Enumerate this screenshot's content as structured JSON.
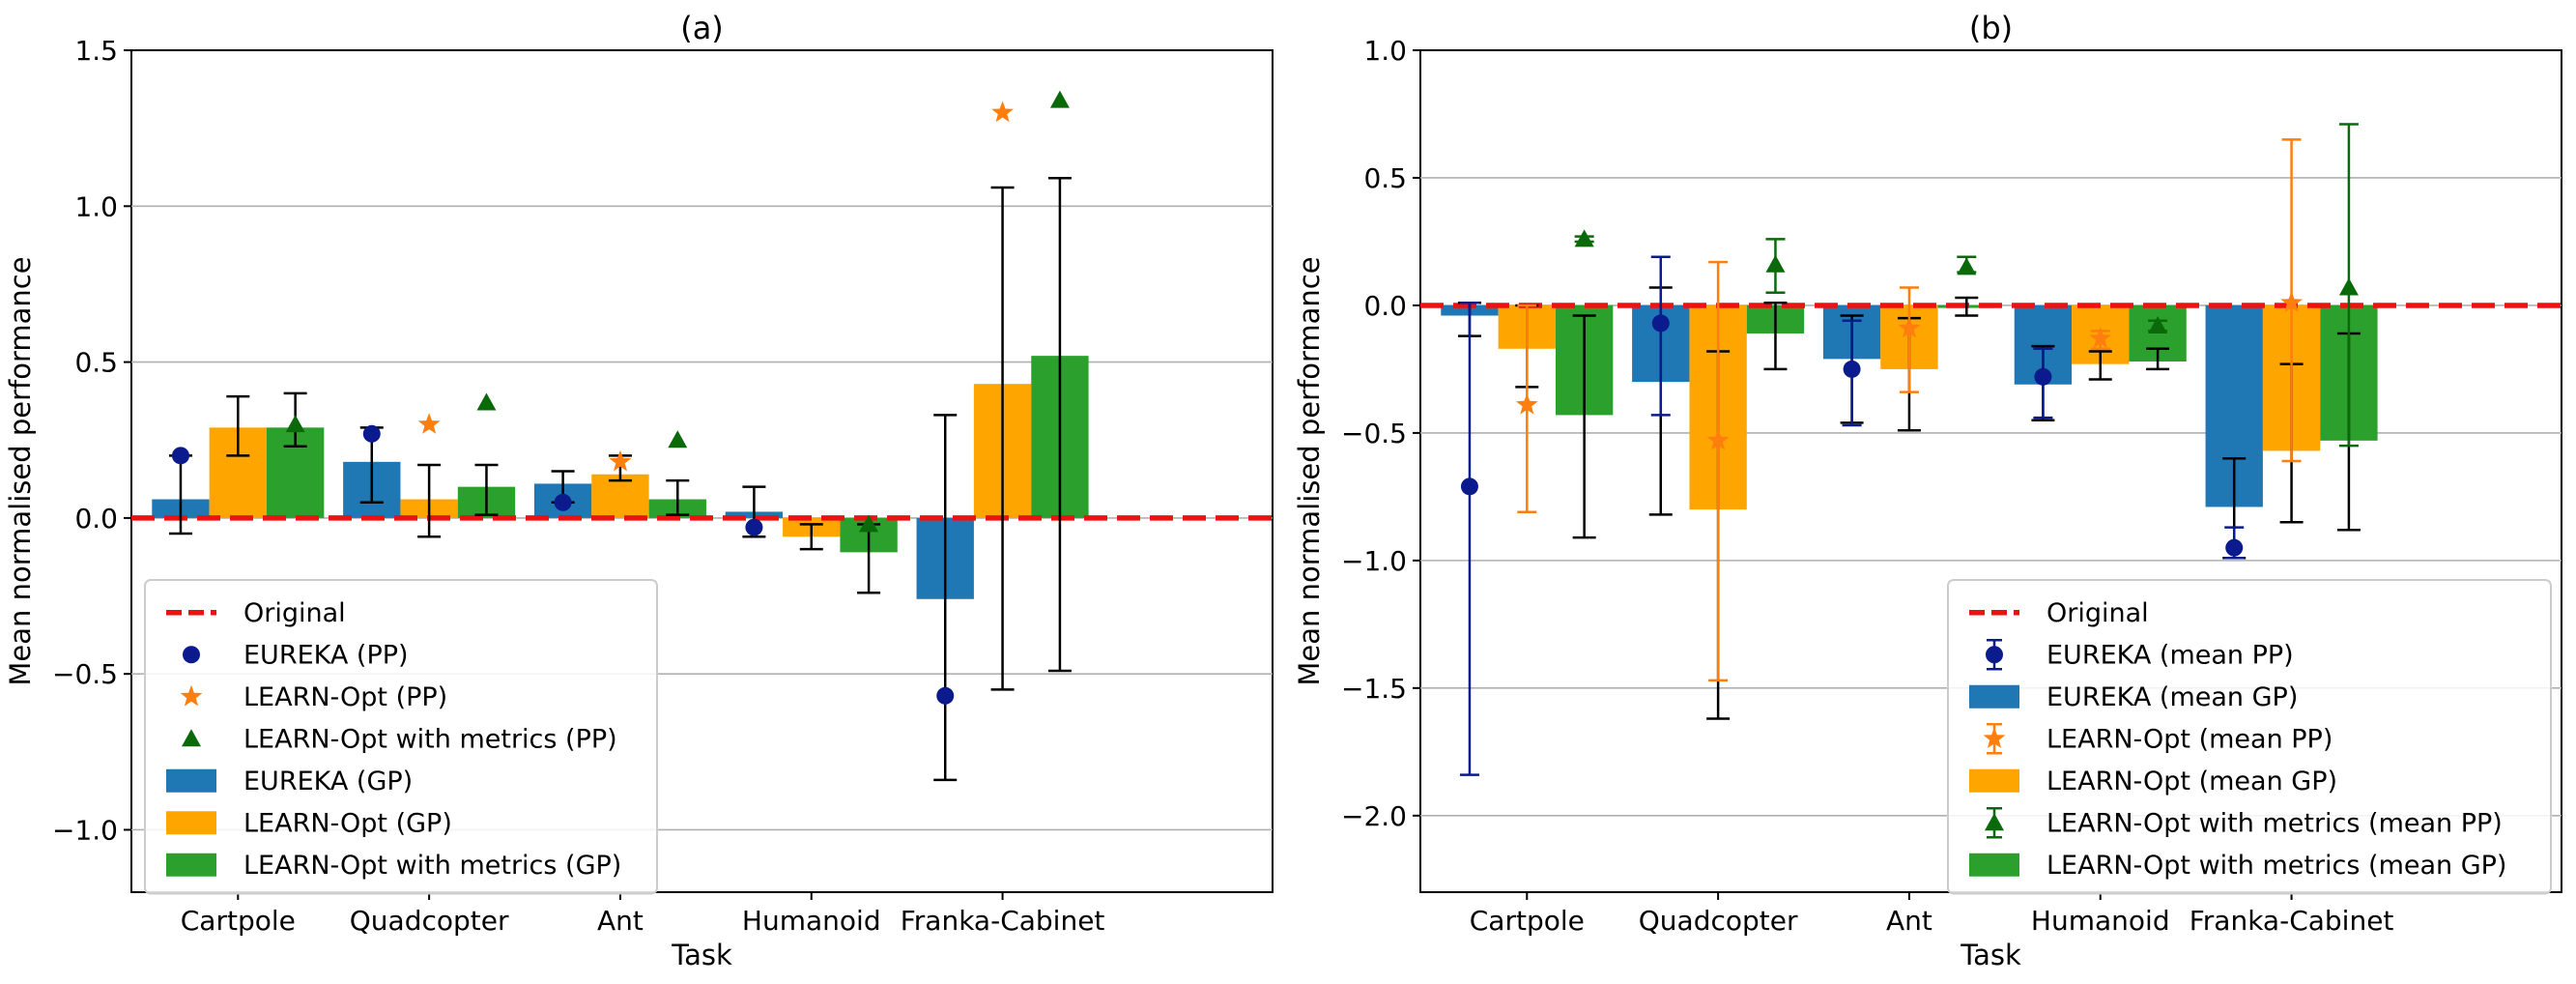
{
  "chart_data": [
    {
      "type": "bar",
      "title": "(a)",
      "xlabel": "Task",
      "ylabel": "Mean normalised performance",
      "ylim": [
        -1.2,
        1.5
      ],
      "yticks": [
        -1.0,
        -0.5,
        0.0,
        0.5,
        1.0,
        1.5
      ],
      "ytick_labels": [
        "−1.0",
        "−0.5",
        "0.0",
        "0.5",
        "1.0",
        "1.5"
      ],
      "grid": "horizontal",
      "legend_position": "lower-left",
      "categories": [
        "Cartpole",
        "Quadcopter",
        "Ant",
        "Humanoid",
        "Franka-Cabinet"
      ],
      "reference_line": {
        "name": "Original",
        "value": 0.0,
        "color": "#ee1111"
      },
      "bar_series": [
        {
          "name": "EUREKA (GP)",
          "color": "#1f77b4",
          "values": [
            0.06,
            0.18,
            0.11,
            0.02,
            -0.26
          ],
          "err_low": [
            -0.05,
            0.05,
            0.05,
            -0.06,
            -0.84
          ],
          "err_high": [
            0.2,
            0.29,
            0.15,
            0.1,
            0.33
          ]
        },
        {
          "name": "LEARN-Opt (GP)",
          "color": "#ffa500",
          "values": [
            0.29,
            0.06,
            0.14,
            -0.06,
            0.43
          ],
          "err_low": [
            0.2,
            -0.06,
            0.12,
            -0.1,
            -0.55
          ],
          "err_high": [
            0.39,
            0.17,
            0.2,
            -0.02,
            1.06
          ]
        },
        {
          "name": "LEARN-Opt with metrics (GP)",
          "color": "#2ca02c",
          "values": [
            0.29,
            0.1,
            0.06,
            -0.11,
            0.52
          ],
          "err_low": [
            0.23,
            0.01,
            0.01,
            -0.24,
            -0.49
          ],
          "err_high": [
            0.4,
            0.17,
            0.12,
            -0.02,
            1.09
          ]
        }
      ],
      "point_series": [
        {
          "name": "EUREKA (PP)",
          "marker": "circle",
          "color": "#0b1a8c",
          "values": [
            0.2,
            0.27,
            0.05,
            -0.03,
            -0.57
          ]
        },
        {
          "name": "LEARN-Opt (PP)",
          "marker": "star",
          "color": "#ff7f0e",
          "values": [
            null,
            0.3,
            0.18,
            null,
            1.3
          ]
        },
        {
          "name": "LEARN-Opt with metrics (PP)",
          "marker": "triangle",
          "color": "#0a6a0a",
          "values": [
            0.3,
            0.37,
            0.25,
            -0.02,
            1.34
          ]
        }
      ],
      "legend": [
        "Original",
        "EUREKA (PP)",
        "LEARN-Opt (PP)",
        "LEARN-Opt with metrics (PP)",
        "EUREKA (GP)",
        "LEARN-Opt (GP)",
        "LEARN-Opt with metrics (GP)"
      ]
    },
    {
      "type": "bar",
      "title": "(b)",
      "xlabel": "Task",
      "ylabel": "Mean normalised performance",
      "ylim": [
        -2.3,
        1.0
      ],
      "yticks": [
        -2.0,
        -1.5,
        -1.0,
        -0.5,
        0.0,
        0.5,
        1.0
      ],
      "ytick_labels": [
        "−2.0",
        "−1.5",
        "−1.0",
        "−0.5",
        "0.0",
        "0.5",
        "1.0"
      ],
      "grid": "horizontal",
      "legend_position": "lower-right",
      "categories": [
        "Cartpole",
        "Quadcopter",
        "Ant",
        "Humanoid",
        "Franka-Cabinet"
      ],
      "reference_line": {
        "name": "Original",
        "value": 0.0,
        "color": "#ee1111"
      },
      "bar_series": [
        {
          "name": "EUREKA (mean GP)",
          "color": "#1f77b4",
          "values": [
            -0.04,
            -0.3,
            -0.21,
            -0.31,
            -0.79
          ],
          "err_low": [
            -0.12,
            -0.82,
            -0.46,
            -0.45,
            -0.99
          ],
          "err_high": [
            0.01,
            0.07,
            -0.04,
            -0.16,
            -0.6
          ]
        },
        {
          "name": "LEARN-Opt (mean GP)",
          "color": "#ffa500",
          "values": [
            -0.17,
            -0.8,
            -0.25,
            -0.23,
            -0.57
          ],
          "err_low": [
            -0.32,
            -1.62,
            -0.49,
            -0.29,
            -0.85
          ],
          "err_high": [
            0.0,
            -0.18,
            -0.05,
            -0.18,
            -0.23
          ]
        },
        {
          "name": "LEARN-Opt with metrics (mean GP)",
          "color": "#2ca02c",
          "values": [
            -0.43,
            -0.11,
            -0.01,
            -0.22,
            -0.53
          ],
          "err_low": [
            -0.91,
            -0.25,
            -0.04,
            -0.25,
            -0.88
          ],
          "err_high": [
            -0.04,
            0.01,
            0.03,
            -0.17,
            -0.11
          ]
        }
      ],
      "point_series": [
        {
          "name": "EUREKA (mean PP)",
          "marker": "circle",
          "color": "#0b1a8c",
          "values": [
            -0.71,
            -0.07,
            -0.25,
            -0.28,
            -0.95
          ],
          "err_low": [
            -1.84,
            -0.43,
            -0.47,
            -0.44,
            -0.99
          ],
          "err_high": [
            0.01,
            0.19,
            -0.06,
            -0.17,
            -0.87
          ]
        },
        {
          "name": "LEARN-Opt (mean PP)",
          "marker": "star",
          "color": "#ff7f0e",
          "values": [
            -0.39,
            -0.53,
            -0.09,
            -0.13,
            0.01
          ],
          "err_low": [
            -0.81,
            -1.47,
            -0.34,
            -0.17,
            -0.61
          ],
          "err_high": [
            0.0,
            0.17,
            0.07,
            -0.1,
            0.65
          ]
        },
        {
          "name": "LEARN-Opt with metrics (mean PP)",
          "marker": "triangle",
          "color": "#0a6a0a",
          "values": [
            0.26,
            0.16,
            0.15,
            -0.08,
            0.07
          ],
          "err_low": [
            0.25,
            0.05,
            0.13,
            -0.1,
            -0.55
          ],
          "err_high": [
            0.27,
            0.26,
            0.19,
            -0.06,
            0.71
          ]
        }
      ],
      "legend": [
        "Original",
        "EUREKA (mean PP)",
        "EUREKA (mean GP)",
        "LEARN-Opt (mean PP)",
        "LEARN-Opt (mean GP)",
        "LEARN-Opt with metrics (mean PP)",
        "LEARN-Opt with metrics (mean GP)"
      ]
    }
  ]
}
